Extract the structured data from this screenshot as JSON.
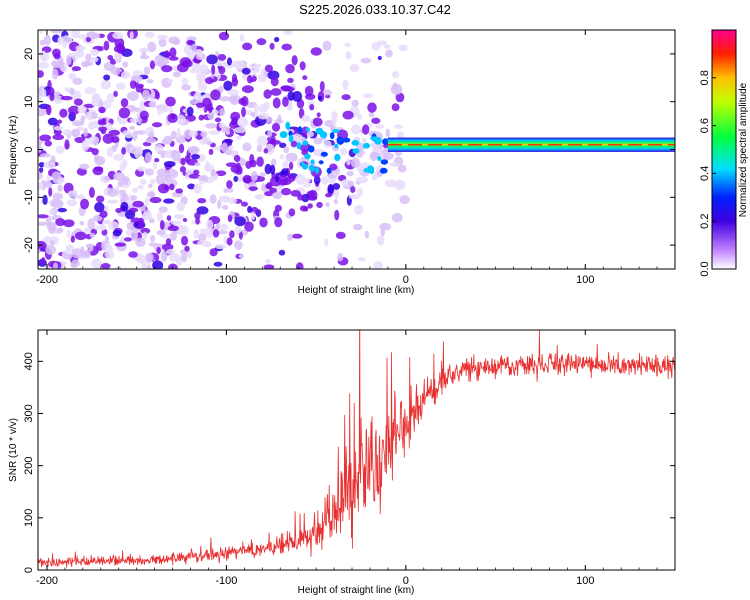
{
  "title": "S225.2026.033.10.37.C42",
  "colors": {
    "snr_line": "#e83030",
    "spec_low": "#c8a0f0",
    "spec_mid": "#6a00d8",
    "frame": "#000000"
  },
  "chart_data": [
    {
      "type": "heatmap",
      "name": "spectrogram",
      "xlabel": "Height of straight line (km)",
      "ylabel": "Frequency (Hz)",
      "xlim": [
        -205,
        150
      ],
      "ylim": [
        -25,
        25
      ],
      "xticks": [
        -200,
        -100,
        0,
        100
      ],
      "yticks": [
        -20,
        -10,
        0,
        10,
        20
      ],
      "colorbar": {
        "label": "Normalized spectral amplitude",
        "range": [
          0,
          1
        ],
        "ticks": [
          0.0,
          0.2,
          0.4,
          0.6,
          0.8
        ]
      },
      "signal_band": {
        "x_start": -10,
        "x_end": 150,
        "center_hz": 1,
        "half_width_hz": 1.5
      }
    },
    {
      "type": "line",
      "name": "snr",
      "xlabel": "Height of straight line (km)",
      "ylabel": "SNR (10 * v/v)",
      "xlim": [
        -205,
        150
      ],
      "ylim": [
        0,
        460
      ],
      "xticks": [
        -200,
        -100,
        0,
        100
      ],
      "yticks": [
        0,
        100,
        200,
        300,
        400
      ],
      "series": [
        {
          "name": "SNR",
          "x": [
            -205,
            -150,
            -120,
            -100,
            -80,
            -60,
            -45,
            -35,
            -25,
            -15,
            -5,
            5,
            15,
            25,
            35,
            50,
            80,
            100,
            150
          ],
          "mean": [
            15,
            18,
            25,
            32,
            40,
            55,
            90,
            150,
            195,
            215,
            260,
            305,
            350,
            375,
            385,
            390,
            395,
            392,
            392
          ],
          "noise": [
            8,
            8,
            10,
            12,
            14,
            20,
            45,
            80,
            100,
            90,
            60,
            40,
            25,
            20,
            18,
            18,
            18,
            18,
            18
          ]
        }
      ]
    }
  ]
}
